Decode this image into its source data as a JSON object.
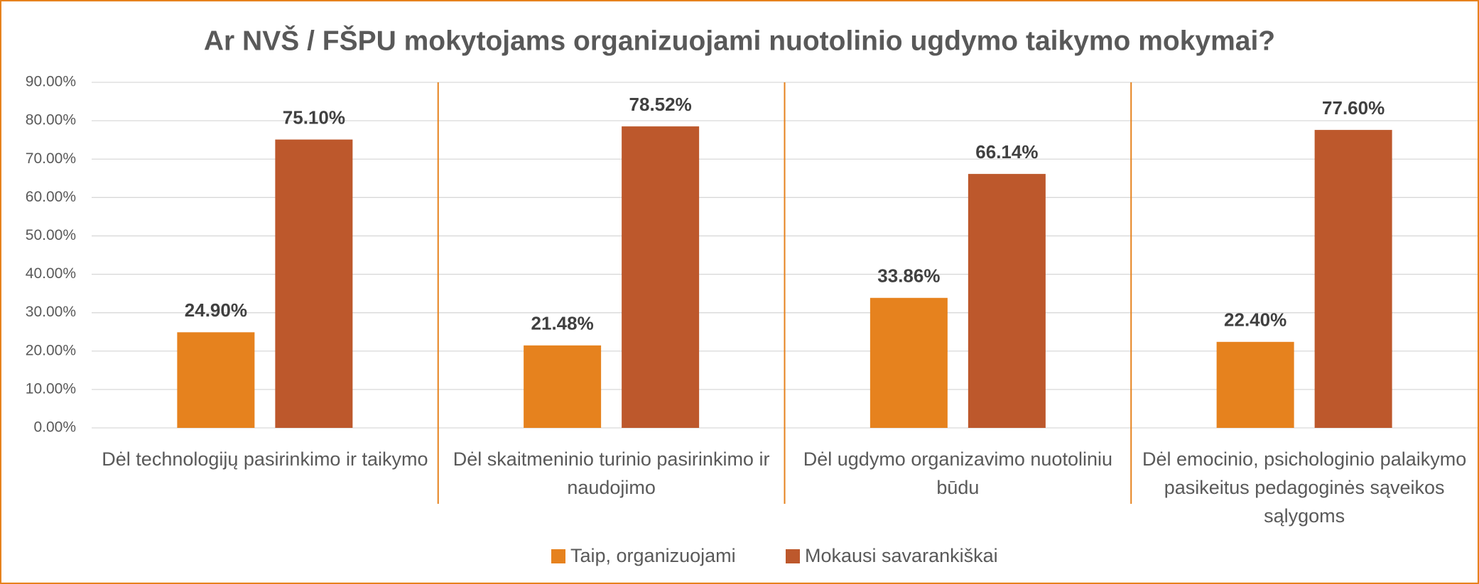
{
  "chart_data": {
    "type": "bar",
    "title": "Ar NVŠ / FŠPU mokytojams organizuojami nuotolinio ugdymo taikymo mokymai?",
    "categories": [
      "Dėl technologijų pasirinkimo ir taikymo",
      "Dėl skaitmeninio turinio pasirinkimo ir naudojimo",
      "Dėl ugdymo organizavimo nuotoliniu būdu",
      "Dėl emocinio, psichologinio palaikymo pasikeitus pedagoginės sąveikos sąlygoms"
    ],
    "series": [
      {
        "name": "Taip, organizuojami",
        "color": "#e6821e",
        "values": [
          24.9,
          21.48,
          33.86,
          22.4
        ],
        "value_labels": [
          "24.90%",
          "21.48%",
          "33.86%",
          "22.40%"
        ]
      },
      {
        "name": "Mokausi savarankiškai",
        "color": "#bd582c",
        "values": [
          75.1,
          78.52,
          66.14,
          77.6
        ],
        "value_labels": [
          "75.10%",
          "78.52%",
          "66.14%",
          "77.60%"
        ]
      }
    ],
    "ylim": [
      0,
      90
    ],
    "yticks": [
      {
        "value": 0,
        "label": "0.00%"
      },
      {
        "value": 10,
        "label": "10.00%"
      },
      {
        "value": 20,
        "label": "20.00%"
      },
      {
        "value": 30,
        "label": "30.00%"
      },
      {
        "value": 40,
        "label": "40.00%"
      },
      {
        "value": 50,
        "label": "50.00%"
      },
      {
        "value": 60,
        "label": "60.00%"
      },
      {
        "value": 70,
        "label": "70.00%"
      },
      {
        "value": 80,
        "label": "80.00%"
      },
      {
        "value": 90,
        "label": "90.00%"
      }
    ],
    "grid": true,
    "legend": "bottom"
  }
}
